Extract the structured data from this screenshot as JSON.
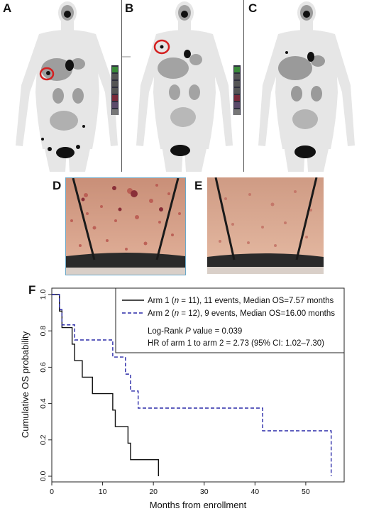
{
  "figure": {
    "panels": [
      {
        "id": "A",
        "letter": "A"
      },
      {
        "id": "B",
        "letter": "B"
      },
      {
        "id": "C",
        "letter": "C"
      },
      {
        "id": "D",
        "letter": "D"
      },
      {
        "id": "E",
        "letter": "E"
      },
      {
        "id": "F",
        "letter": "F"
      }
    ],
    "colors": {
      "arm1": "#111111",
      "arm2": "#2a2aa8",
      "highlight": "#d42020",
      "pet_tissue": "#8c8c8c",
      "skin": "#d9a48c"
    }
  },
  "chart_data": {
    "type": "line",
    "subtype": "kaplan-meier step",
    "xlabel": "Months from enrollment",
    "ylabel": "Cumulative OS probability",
    "xlim": [
      0,
      57
    ],
    "ylim": [
      0,
      1.0
    ],
    "x_ticks": [
      0,
      10,
      20,
      30,
      40,
      50
    ],
    "y_ticks": [
      0.0,
      0.2,
      0.4,
      0.6,
      0.8,
      1.0
    ],
    "x_tick_labels": [
      "0",
      "10",
      "20",
      "30",
      "40",
      "50"
    ],
    "y_tick_labels": [
      "0.0",
      "0.2",
      "0.4",
      "0.6",
      "0.8",
      "1.0"
    ],
    "grid": false,
    "legend_placement": "top-right",
    "series": [
      {
        "name": "Arm 1 (n = 11), 11 events, Median OS=7.57 months",
        "style": "solid",
        "x": [
          0,
          1.5,
          2.0,
          4.0,
          4.5,
          6.0,
          8.0,
          12.0,
          12.5,
          15.0,
          15.5,
          21.0
        ],
        "y": [
          1.0,
          0.909,
          0.818,
          0.727,
          0.636,
          0.545,
          0.455,
          0.364,
          0.273,
          0.182,
          0.091,
          0.0
        ]
      },
      {
        "name": "Arm 2 (n = 12), 9 events, Median OS=16.00 months",
        "style": "dashed",
        "x": [
          0,
          1.5,
          2.0,
          4.5,
          6.0,
          10.0,
          12.0,
          14.5,
          15.5,
          16.0,
          17.0,
          41.5,
          55.0
        ],
        "y": [
          1.0,
          0.917,
          0.833,
          0.75,
          0.75,
          0.75,
          0.656,
          0.562,
          0.469,
          0.469,
          0.375,
          0.25,
          0.0
        ]
      }
    ],
    "annotations": {
      "legend_arm1": {
        "prefix": "Arm 1 (",
        "n": "n",
        "suffix": " = 11), 11 events, Median OS=7.57 months"
      },
      "legend_arm2": {
        "prefix": "Arm 2 (",
        "n": "n",
        "suffix": " = 12), 9 events, Median OS=16.00 months"
      },
      "logrank": {
        "prefix": "Log-Rank ",
        "p": "P",
        "suffix": " value = 0.039"
      },
      "hr": "HR of arm 1 to arm 2 =  2.73 (95% CI: 1.02–7.30)"
    }
  }
}
